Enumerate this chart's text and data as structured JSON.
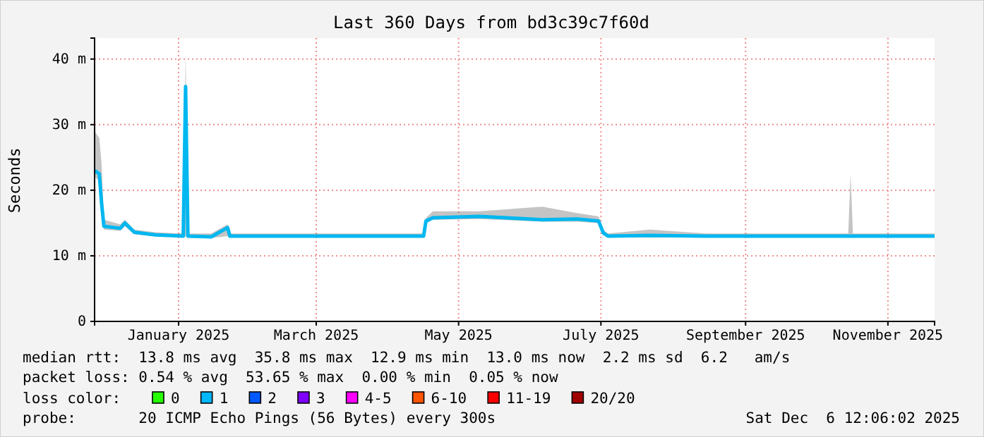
{
  "chart_data": {
    "type": "line",
    "title": "Last 360 Days from bd3c39c7f60d",
    "ylabel": "Seconds",
    "xlim": [
      "2024-12-11",
      "2025-12-06"
    ],
    "xticks": [
      {
        "value": "2025-01-16",
        "label": "January 2025"
      },
      {
        "value": "2025-03-16",
        "label": "March 2025"
      },
      {
        "value": "2025-05-16",
        "label": "May 2025"
      },
      {
        "value": "2025-07-16",
        "label": "July 2025"
      },
      {
        "value": "2025-09-16",
        "label": "September 2025"
      },
      {
        "value": "2025-11-16",
        "label": "November 2025"
      }
    ],
    "ylim": [
      0,
      43.2
    ],
    "yticks": [
      0,
      {
        "value": 10,
        "label": "10 m"
      },
      {
        "value": 20,
        "label": "20 m"
      },
      {
        "value": 30,
        "label": "30 m"
      },
      {
        "value": 40,
        "label": "40 m"
      }
    ],
    "grid": true,
    "marker": "none",
    "line_style": "solid",
    "series": [
      {
        "color": "#00b7f0",
        "x": [
          "2024-12-11",
          "2024-12-13",
          "2024-12-14",
          "2024-12-15",
          "2024-12-22",
          "2024-12-24",
          "2024-12-28",
          "2025-01-06",
          "2025-01-18",
          "2025-01-19",
          "2025-01-20",
          "2025-01-30",
          "2025-02-06",
          "2025-02-07",
          "2025-03-01",
          "2025-04-01",
          "2025-05-01",
          "2025-05-02",
          "2025-05-05",
          "2025-05-25",
          "2025-06-21",
          "2025-07-06",
          "2025-07-15",
          "2025-07-17",
          "2025-07-19",
          "2025-08-06",
          "2025-08-30",
          "2025-09-29",
          "2025-10-30",
          "2025-10-31",
          "2025-11-01",
          "2025-12-06"
        ],
        "values": [
          23,
          22.5,
          18,
          14.5,
          14.2,
          15,
          13.6,
          13.2,
          13,
          35.8,
          13,
          12.9,
          14.3,
          13,
          13,
          13,
          13,
          15.3,
          15.8,
          16,
          15.5,
          15.6,
          15.3,
          13.5,
          13,
          13.1,
          13,
          13,
          13,
          13,
          13,
          13
        ],
        "lower": [
          22,
          21.5,
          16,
          14,
          13.8,
          14.5,
          13.3,
          13,
          12.8,
          13,
          12.8,
          12.7,
          13,
          12.8,
          12.8,
          12.8,
          12.8,
          15,
          15.5,
          15.6,
          15.2,
          15.2,
          15,
          13.2,
          12.8,
          12.8,
          12.8,
          12.8,
          12.8,
          12.8,
          12.8,
          12.8
        ],
        "upper": [
          29,
          28,
          24,
          15.5,
          14.8,
          15.5,
          14,
          13.6,
          13.4,
          41,
          13.4,
          13.4,
          14.8,
          13.4,
          13.4,
          13.4,
          13.4,
          15.8,
          16.8,
          16.8,
          17.5,
          16.5,
          16,
          14,
          13.4,
          14,
          13.4,
          13.4,
          13.4,
          22.5,
          13.4,
          13.4
        ]
      }
    ],
    "annotations": [
      "median rtt:  13.8 ms avg  35.8 ms max  12.9 ms min  13.0 ms now  2.2 ms sd  6.2   am/s",
      "packet loss: 0.54 % avg  53.65 % max  0.00 % min  0.05 % now",
      "loss color:",
      "0",
      "1",
      "2",
      "3",
      "4-5",
      "6-10",
      "11-19",
      "20/20",
      "probe:       20 ICMP Echo Pings (56 Bytes) every 300s",
      "Sat Dec  6 12:06:02 2025"
    ]
  }
}
